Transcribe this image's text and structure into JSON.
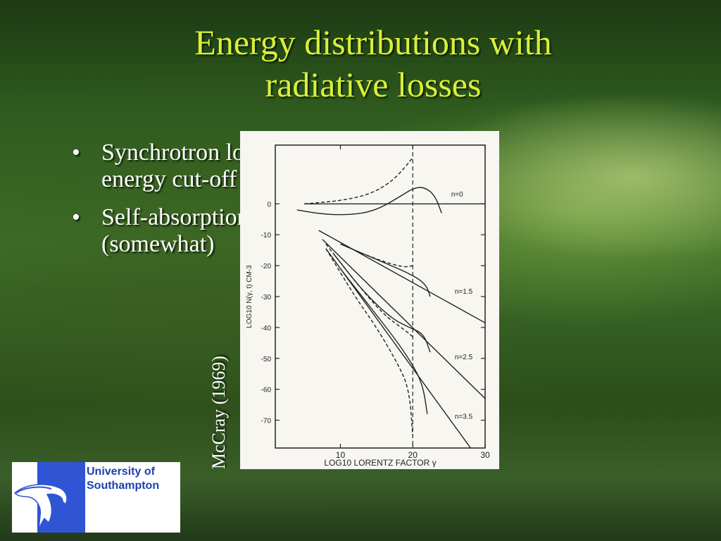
{
  "slide": {
    "title_line1": "Energy distributions with",
    "title_line2": "radiative losses",
    "bullets": [
      {
        "line1": "Synchrotron losses produce a high-",
        "line2": "energy cut-off"
      },
      {
        "line1": "Self-absorption reduces losses",
        "line2": "(somewhat)"
      }
    ],
    "bullet_glyph": "•",
    "credit": "McCray (1969)",
    "logo": {
      "line1": "University of",
      "line2": "Southampton",
      "mark_icon": "dolphin-icon",
      "color": "#1d3fb0"
    }
  },
  "chart_data": {
    "type": "line",
    "xlabel": "LOG10 LORENTZ FACTOR γ",
    "ylabel": "LOG10 N(γ, t) CM-3",
    "x_ticks": [
      10,
      20,
      30
    ],
    "y_ticks": [
      0,
      -10,
      -20,
      -30,
      -40,
      -50,
      -60,
      -70
    ],
    "xlim": [
      1,
      30
    ],
    "ylim": [
      -79,
      19
    ],
    "cutoff_x": 20,
    "series": [
      {
        "name": "n=0",
        "label_pos": [
          25.3,
          2.4
        ],
        "power_law": [
          [
            5,
            0
          ],
          [
            30,
            0
          ]
        ],
        "dashed": [
          [
            5,
            0
          ],
          [
            10,
            1
          ],
          [
            14,
            3
          ],
          [
            17,
            7
          ],
          [
            19,
            12
          ],
          [
            20,
            15
          ]
        ],
        "solid": [
          [
            4,
            -2
          ],
          [
            8,
            -3.5
          ],
          [
            12,
            -3.5
          ],
          [
            15,
            -2
          ],
          [
            18,
            2
          ],
          [
            20,
            5
          ],
          [
            21.5,
            5.5
          ],
          [
            23,
            3
          ],
          [
            24,
            -3
          ]
        ]
      },
      {
        "name": "n=1.5",
        "label_pos": [
          25.8,
          -29.1
        ],
        "power_law": [
          [
            7,
            -8.6
          ],
          [
            30,
            -38.5
          ]
        ],
        "dashed": [
          [
            10,
            -13
          ],
          [
            14,
            -17
          ],
          [
            17,
            -19.5
          ],
          [
            19,
            -20.5
          ],
          [
            20,
            -20
          ]
        ],
        "solid": [
          [
            10,
            -13
          ],
          [
            14,
            -17
          ],
          [
            17,
            -20
          ],
          [
            19,
            -22
          ],
          [
            21,
            -24.5
          ],
          [
            22,
            -27
          ],
          [
            22.4,
            -30
          ]
        ]
      },
      {
        "name": "n=2.5",
        "label_pos": [
          25.8,
          -50.3
        ],
        "power_law": [
          [
            7.5,
            -11.5
          ],
          [
            30,
            -63
          ]
        ],
        "dashed": [
          [
            8,
            -13
          ],
          [
            12,
            -25
          ],
          [
            16,
            -36
          ],
          [
            19,
            -41
          ],
          [
            20,
            -43
          ]
        ],
        "solid": [
          [
            9,
            -16
          ],
          [
            13,
            -28
          ],
          [
            17,
            -37
          ],
          [
            19.5,
            -40
          ],
          [
            21.5,
            -42
          ],
          [
            22.4,
            -48
          ]
        ]
      },
      {
        "name": "n=3.5",
        "label_pos": [
          25.8,
          -69.5
        ],
        "power_law": [
          [
            8,
            -14.5
          ],
          [
            28,
            -79
          ]
        ],
        "dashed": [
          [
            8,
            -14.5
          ],
          [
            12,
            -30
          ],
          [
            15,
            -40
          ],
          [
            18,
            -52
          ],
          [
            19.5,
            -60
          ],
          [
            20,
            -75
          ]
        ],
        "solid": [
          [
            10,
            -21
          ],
          [
            14,
            -33
          ],
          [
            18,
            -45
          ],
          [
            20.5,
            -54
          ],
          [
            21.5,
            -60
          ],
          [
            22,
            -68
          ]
        ]
      }
    ]
  }
}
